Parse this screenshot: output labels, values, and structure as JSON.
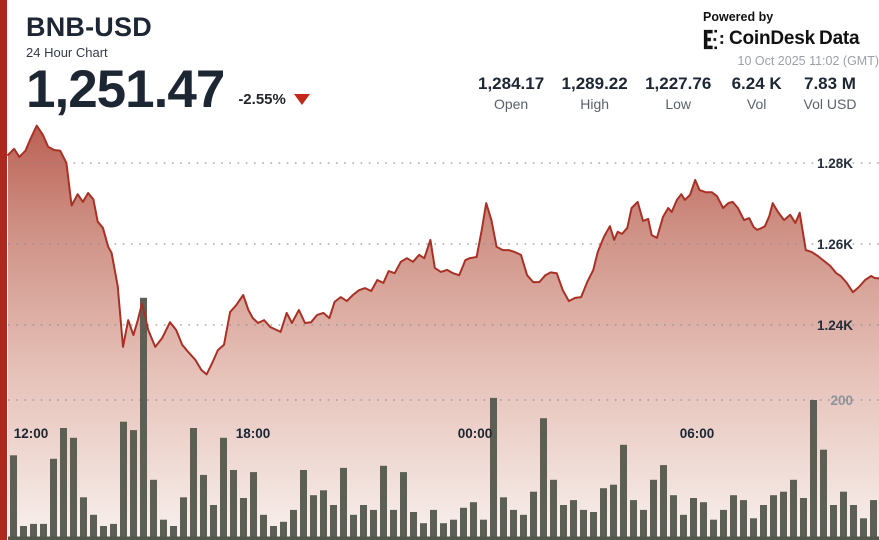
{
  "header": {
    "symbol": "BNB-USD",
    "subtitle": "24 Hour Chart",
    "price": "1,251.47",
    "change": "-2.55%",
    "change_direction": "down",
    "powered_by": "Powered by",
    "brand": "CoinDesk",
    "brand_suffix": "Data",
    "timestamp": "10 Oct 2025 11:02 (GMT)"
  },
  "stats": [
    {
      "value": "1,284.17",
      "label": "Open"
    },
    {
      "value": "1,289.22",
      "label": "High"
    },
    {
      "value": "1,227.76",
      "label": "Low"
    },
    {
      "value": "6.24 K",
      "label": "Vol"
    },
    {
      "value": "7.83 M",
      "label": "Vol USD"
    }
  ],
  "colors": {
    "accent": "#b1271b",
    "line": "#a83126",
    "change_negative": "#c3291b",
    "volume_bar": "#5c6054",
    "title_text": "#1d2633",
    "muted_text": "#5a616b",
    "timestamp_text": "#9ba1a8"
  },
  "chart_data": {
    "type": "area",
    "title": "BNB-USD 24 Hour Chart",
    "legend": "none",
    "grid": "dotted-horizontal",
    "x_axis": {
      "labels": [
        "12:00",
        "18:00",
        "00:00",
        "06:00"
      ]
    },
    "y_axis_price": {
      "side": "right",
      "range_visible": [
        1227.76,
        1289.22
      ],
      "ticks": [
        {
          "label": "1.28K",
          "value": 1280
        },
        {
          "label": "1.26K",
          "value": 1260
        },
        {
          "label": "1.24K",
          "value": 1240
        }
      ]
    },
    "y_axis_volume": {
      "side": "right",
      "ticks": [
        {
          "label": "200",
          "value": 200
        }
      ]
    },
    "series": [
      {
        "name": "price",
        "type": "line-area",
        "points": [
          [
            0,
            1282
          ],
          [
            0.007,
            1283.5
          ],
          [
            0.013,
            1281.5
          ],
          [
            0.02,
            1283
          ],
          [
            0.026,
            1286
          ],
          [
            0.033,
            1289.2
          ],
          [
            0.04,
            1287
          ],
          [
            0.046,
            1284
          ],
          [
            0.053,
            1283.2
          ],
          [
            0.06,
            1283
          ],
          [
            0.067,
            1280
          ],
          [
            0.073,
            1269.5
          ],
          [
            0.08,
            1272.3
          ],
          [
            0.086,
            1270.4
          ],
          [
            0.092,
            1272.6
          ],
          [
            0.098,
            1271
          ],
          [
            0.103,
            1265.5
          ],
          [
            0.109,
            1264
          ],
          [
            0.115,
            1259.3
          ],
          [
            0.119,
            1257.8
          ],
          [
            0.126,
            1249.6
          ],
          [
            0.132,
            1234.6
          ],
          [
            0.138,
            1241.2
          ],
          [
            0.144,
            1237.5
          ],
          [
            0.149,
            1241.2
          ],
          [
            0.154,
            1245.4
          ],
          [
            0.161,
            1238.8
          ],
          [
            0.169,
            1234.6
          ],
          [
            0.177,
            1236.8
          ],
          [
            0.186,
            1240.7
          ],
          [
            0.193,
            1238.8
          ],
          [
            0.2,
            1235.1
          ],
          [
            0.207,
            1233.3
          ],
          [
            0.215,
            1231.4
          ],
          [
            0.222,
            1228.9
          ],
          [
            0.228,
            1227.8
          ],
          [
            0.235,
            1230.9
          ],
          [
            0.241,
            1233.8
          ],
          [
            0.248,
            1235.1
          ],
          [
            0.255,
            1243.2
          ],
          [
            0.262,
            1244.9
          ],
          [
            0.27,
            1247.4
          ],
          [
            0.276,
            1243.7
          ],
          [
            0.281,
            1241.7
          ],
          [
            0.287,
            1240.5
          ],
          [
            0.294,
            1241.2
          ],
          [
            0.301,
            1239.5
          ],
          [
            0.308,
            1238.8
          ],
          [
            0.313,
            1238.3
          ],
          [
            0.32,
            1243
          ],
          [
            0.326,
            1240.5
          ],
          [
            0.334,
            1243.7
          ],
          [
            0.341,
            1240.5
          ],
          [
            0.348,
            1240.7
          ],
          [
            0.355,
            1242.5
          ],
          [
            0.362,
            1243
          ],
          [
            0.369,
            1241.7
          ],
          [
            0.375,
            1245.7
          ],
          [
            0.382,
            1246.9
          ],
          [
            0.389,
            1245.9
          ],
          [
            0.396,
            1247.4
          ],
          [
            0.403,
            1248.6
          ],
          [
            0.41,
            1249.1
          ],
          [
            0.417,
            1248.4
          ],
          [
            0.424,
            1251.1
          ],
          [
            0.431,
            1250.4
          ],
          [
            0.437,
            1253.3
          ],
          [
            0.444,
            1252.8
          ],
          [
            0.451,
            1255.6
          ],
          [
            0.458,
            1256.5
          ],
          [
            0.465,
            1255.6
          ],
          [
            0.472,
            1257.3
          ],
          [
            0.478,
            1256.5
          ],
          [
            0.485,
            1261
          ],
          [
            0.49,
            1254.1
          ],
          [
            0.497,
            1253.1
          ],
          [
            0.504,
            1253.6
          ],
          [
            0.511,
            1252.8
          ],
          [
            0.518,
            1252.3
          ],
          [
            0.525,
            1256
          ],
          [
            0.53,
            1256.5
          ],
          [
            0.538,
            1256.8
          ],
          [
            0.544,
            1263.5
          ],
          [
            0.549,
            1270.1
          ],
          [
            0.555,
            1265.9
          ],
          [
            0.561,
            1259.3
          ],
          [
            0.568,
            1258.5
          ],
          [
            0.575,
            1258.5
          ],
          [
            0.582,
            1258
          ],
          [
            0.589,
            1257.3
          ],
          [
            0.596,
            1252.3
          ],
          [
            0.603,
            1250.6
          ],
          [
            0.61,
            1250.6
          ],
          [
            0.617,
            1252.3
          ],
          [
            0.623,
            1253
          ],
          [
            0.63,
            1252.8
          ],
          [
            0.637,
            1248.6
          ],
          [
            0.644,
            1245.9
          ],
          [
            0.651,
            1246.7
          ],
          [
            0.658,
            1246.9
          ],
          [
            0.665,
            1250.6
          ],
          [
            0.672,
            1253.6
          ],
          [
            0.677,
            1258
          ],
          [
            0.684,
            1261.7
          ],
          [
            0.691,
            1264.4
          ],
          [
            0.696,
            1261
          ],
          [
            0.7,
            1263
          ],
          [
            0.705,
            1262.5
          ],
          [
            0.711,
            1264
          ],
          [
            0.716,
            1268.9
          ],
          [
            0.723,
            1270.4
          ],
          [
            0.729,
            1265.7
          ],
          [
            0.735,
            1266.2
          ],
          [
            0.739,
            1262.2
          ],
          [
            0.745,
            1261.5
          ],
          [
            0.752,
            1266.7
          ],
          [
            0.758,
            1268.9
          ],
          [
            0.762,
            1267.9
          ],
          [
            0.768,
            1270.9
          ],
          [
            0.773,
            1272.3
          ],
          [
            0.777,
            1270.9
          ],
          [
            0.783,
            1272.1
          ],
          [
            0.789,
            1275.8
          ],
          [
            0.794,
            1273.3
          ],
          [
            0.801,
            1272.8
          ],
          [
            0.808,
            1272.8
          ],
          [
            0.814,
            1271.8
          ],
          [
            0.821,
            1268.9
          ],
          [
            0.827,
            1270.1
          ],
          [
            0.832,
            1270.4
          ],
          [
            0.838,
            1268.9
          ],
          [
            0.845,
            1265.9
          ],
          [
            0.851,
            1266.4
          ],
          [
            0.856,
            1264.2
          ],
          [
            0.86,
            1263.5
          ],
          [
            0.864,
            1263.8
          ],
          [
            0.869,
            1264.4
          ],
          [
            0.874,
            1266.9
          ],
          [
            0.878,
            1270.1
          ],
          [
            0.884,
            1267.9
          ],
          [
            0.891,
            1265.9
          ],
          [
            0.898,
            1267.2
          ],
          [
            0.904,
            1265.2
          ],
          [
            0.909,
            1267.7
          ],
          [
            0.916,
            1258.5
          ],
          [
            0.923,
            1258
          ],
          [
            0.93,
            1257
          ],
          [
            0.937,
            1255.8
          ],
          [
            0.944,
            1254.6
          ],
          [
            0.951,
            1252.8
          ],
          [
            0.956,
            1252.1
          ],
          [
            0.963,
            1250.4
          ],
          [
            0.97,
            1248.1
          ],
          [
            0.977,
            1249.4
          ],
          [
            0.984,
            1251.1
          ],
          [
            0.991,
            1252.1
          ],
          [
            0.995,
            1251.6
          ],
          [
            1,
            1251.5
          ]
        ]
      },
      {
        "name": "volume",
        "type": "bar",
        "values": [
          121,
          20,
          23,
          23,
          116,
          160,
          146,
          61,
          36,
          20,
          23,
          169,
          157,
          346,
          86,
          29,
          20,
          61,
          160,
          93,
          50,
          146,
          100,
          60,
          97,
          36,
          20,
          26,
          43,
          100,
          64,
          71,
          50,
          103,
          36,
          50,
          43,
          106,
          43,
          97,
          40,
          24,
          43,
          24,
          29,
          46,
          54,
          29,
          203,
          61,
          43,
          36,
          69,
          174,
          86,
          50,
          57,
          43,
          40,
          74,
          79,
          136,
          57,
          43,
          86,
          107,
          64,
          36,
          60,
          54,
          29,
          43,
          64,
          57,
          31,
          50,
          64,
          69,
          86,
          60,
          200,
          129,
          50,
          69,
          50,
          31,
          57
        ]
      }
    ]
  }
}
